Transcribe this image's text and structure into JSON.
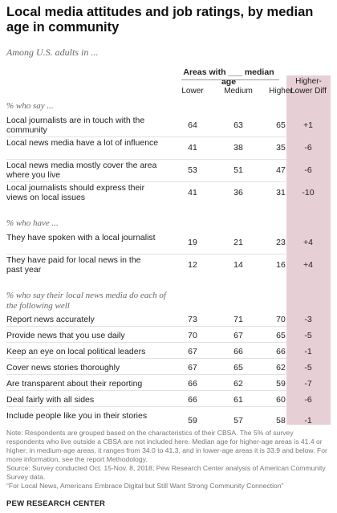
{
  "title": "Local media attitudes and job ratings, by median age in community",
  "subtitle": "Among U.S. adults in ...",
  "column_group_header": "Areas with ___ median age",
  "colors": {
    "diff_column_bg": "#e7d0d5",
    "text": "#222222",
    "muted": "#777777"
  },
  "chart_data": {
    "type": "table",
    "columns": [
      "Lower",
      "Medium",
      "Higher",
      "Higher-Lower Diff"
    ],
    "sections": [
      {
        "heading": "% who say ...",
        "rows": [
          {
            "label": "Local journalists are in touch with the community",
            "values": [
              "64",
              "63",
              "65",
              "+1"
            ]
          },
          {
            "label": "Local news media have a lot of influence",
            "values": [
              "41",
              "38",
              "35",
              "-6"
            ]
          },
          {
            "label": "Local news media mostly cover the area where you live",
            "values": [
              "53",
              "51",
              "47",
              "-6"
            ]
          },
          {
            "label": "Local journalists should express their views on local issues",
            "values": [
              "41",
              "36",
              "31",
              "-10"
            ]
          }
        ]
      },
      {
        "heading": "% who have ...",
        "rows": [
          {
            "label": "They have spoken with a local journalist",
            "values": [
              "19",
              "21",
              "23",
              "+4"
            ]
          },
          {
            "label": "They have paid for local news in the past year",
            "values": [
              "12",
              "14",
              "16",
              "+4"
            ]
          }
        ]
      },
      {
        "heading": "% who say their local news media do each of the following well",
        "rows": [
          {
            "label": "Report news accurately",
            "values": [
              "73",
              "71",
              "70",
              "-3"
            ]
          },
          {
            "label": "Provide news that you use daily",
            "values": [
              "70",
              "67",
              "65",
              "-5"
            ]
          },
          {
            "label": "Keep an eye on local political leaders",
            "values": [
              "67",
              "66",
              "66",
              "-1"
            ]
          },
          {
            "label": "Cover news stories thoroughly",
            "values": [
              "67",
              "65",
              "62",
              "-5"
            ]
          },
          {
            "label": "Are transparent about their reporting",
            "values": [
              "66",
              "62",
              "59",
              "-7"
            ]
          },
          {
            "label": "Deal fairly with all sides",
            "values": [
              "66",
              "61",
              "60",
              "-6"
            ]
          },
          {
            "label": "Include people like you in their stories",
            "values": [
              "59",
              "57",
              "58",
              "-1"
            ]
          }
        ]
      }
    ]
  },
  "notes": [
    "Note: Respondents are grouped based on the characteristics of their CBSA. The 5% of survey respondents who live outside a CBSA are not included here. Median age for higher-age areas is 41.4 or higher; in medium-age areas, it ranges from 34.0 to 41.3, and in lower-age areas it is 33.9 and below. For more information, see the report Methodology.",
    "Source: Survey conducted Oct. 15-Nov. 8, 2018; Pew Research Center analysis of American Community Survey data.",
    "“For Local News, Americans Embrace Digital but Still Want Strong Community Connection”"
  ],
  "brand": "PEW RESEARCH CENTER"
}
